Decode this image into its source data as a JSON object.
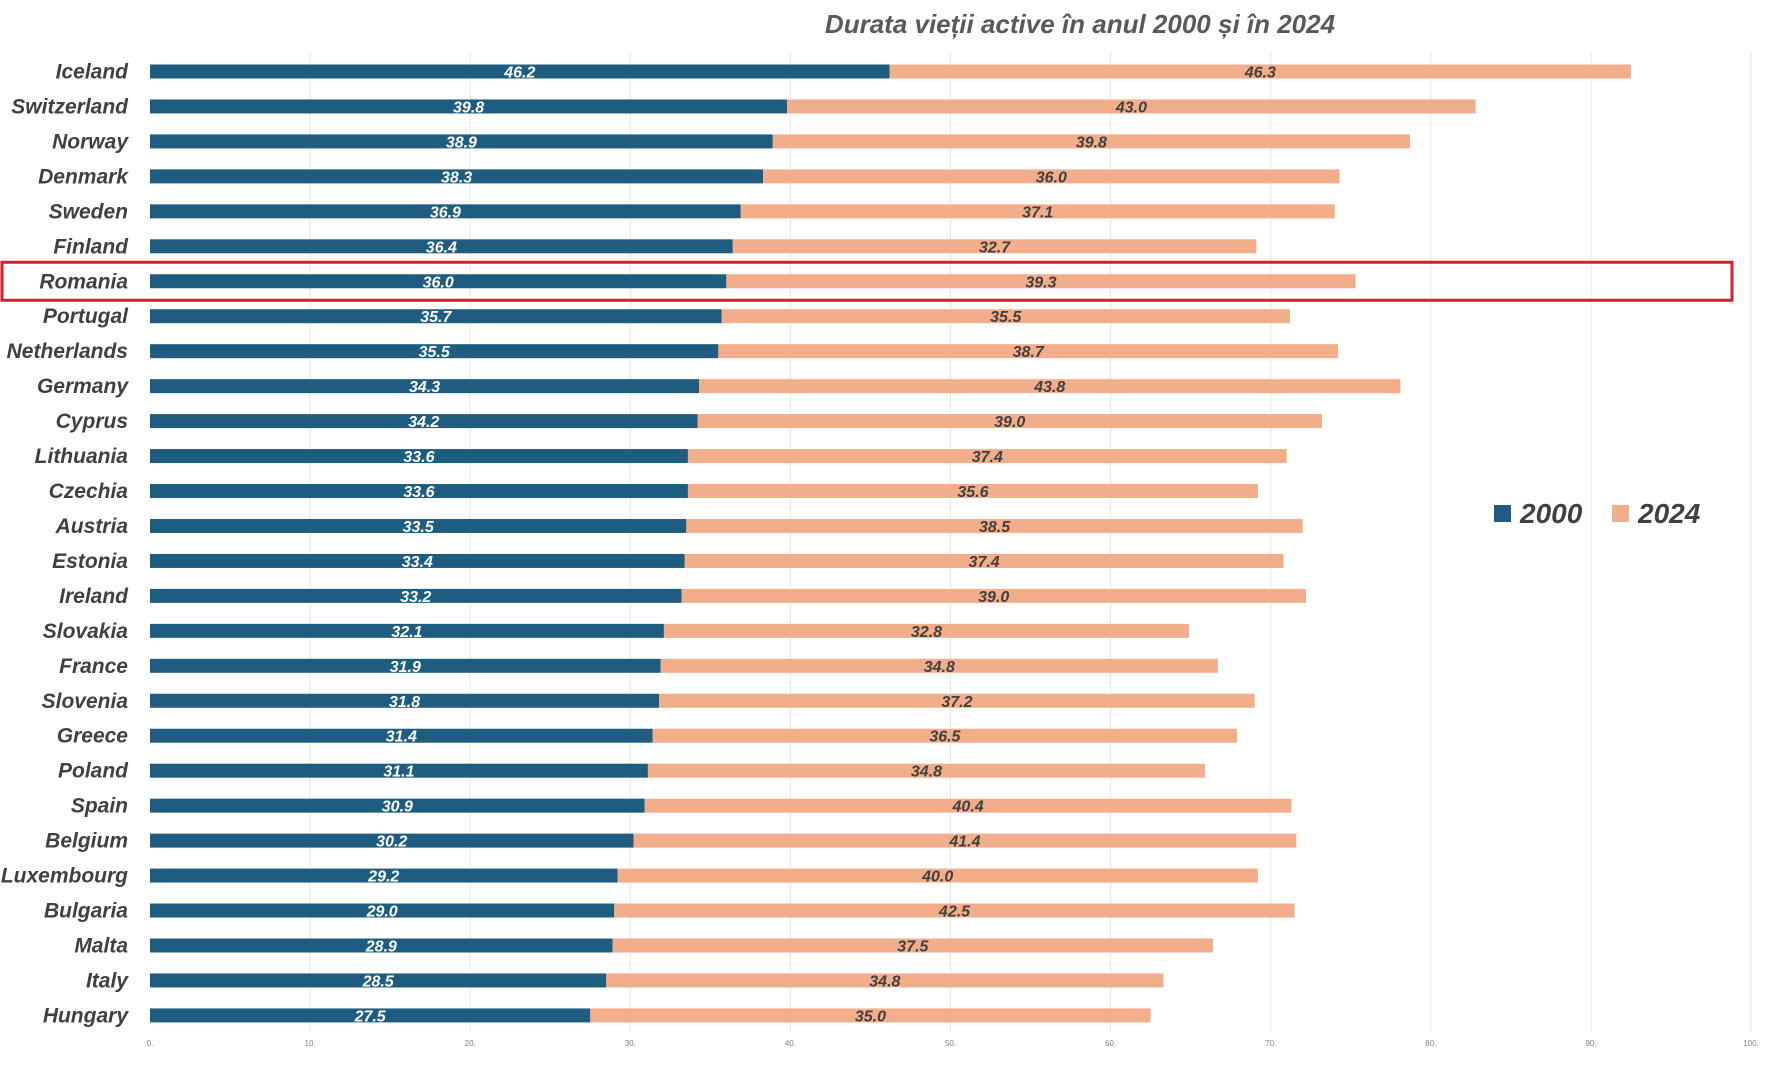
{
  "chart_data": {
    "type": "bar",
    "orientation": "horizontal",
    "stacked": true,
    "title": "Durata vieții active în anul 2000 și în 2024",
    "xlabel": "",
    "ylabel": "",
    "xlim": [
      0,
      100
    ],
    "x_ticks": [
      "0.",
      "10.",
      "20.",
      "30.",
      "40.",
      "50.",
      "60.",
      "70.",
      "80.",
      "90.",
      "100."
    ],
    "grid": "vertical",
    "legend_position": "right",
    "highlight_category": "Romania",
    "highlight_color": "#d0202a",
    "categories": [
      "Iceland",
      "Switzerland",
      "Norway",
      "Denmark",
      "Sweden",
      "Finland",
      "Romania",
      "Portugal",
      "Netherlands",
      "Germany",
      "Cyprus",
      "Lithuania",
      "Czechia",
      "Austria",
      "Estonia",
      "Ireland",
      "Slovakia",
      "France",
      "Slovenia",
      "Greece",
      "Poland",
      "Spain",
      "Belgium",
      "Luxembourg",
      "Bulgaria",
      "Malta",
      "Italy",
      "Hungary"
    ],
    "series": [
      {
        "name": "2000",
        "color": "#1f5d80",
        "values": [
          46.2,
          39.8,
          38.9,
          38.3,
          36.9,
          36.4,
          36.0,
          35.7,
          35.5,
          34.3,
          34.2,
          33.6,
          33.6,
          33.5,
          33.4,
          33.2,
          32.1,
          31.9,
          31.8,
          31.4,
          31.1,
          30.9,
          30.2,
          29.2,
          29.0,
          28.9,
          28.5,
          27.5
        ],
        "labels": [
          "46.2",
          "39.8",
          "38.9",
          "38.3",
          "36.9",
          "36.4",
          "36.0",
          "35.7",
          "35.5",
          "34.3",
          "34.2",
          "33.6",
          "33.6",
          "33.5",
          "33.4",
          "33.2",
          "32.1",
          "31.9",
          "31.8",
          "31.4",
          "31.1",
          "30.9",
          "30.2",
          "29.2",
          "29.0",
          "28.9",
          "28.5",
          "27.5"
        ]
      },
      {
        "name": "2024",
        "color": "#f2ae8a",
        "values": [
          46.3,
          43.0,
          39.8,
          36.0,
          37.1,
          32.7,
          39.3,
          35.5,
          38.7,
          43.8,
          39.0,
          37.4,
          35.6,
          38.5,
          37.4,
          39.0,
          32.8,
          34.8,
          37.2,
          36.5,
          34.8,
          40.4,
          41.4,
          40.0,
          42.5,
          37.5,
          34.8,
          35.0
        ],
        "labels": [
          "46.3",
          "43.0",
          "39.8",
          "36.0",
          "37.1",
          "32.7",
          "39.3",
          "35.5",
          "38.7",
          "43.8",
          "39.0",
          "37.4",
          "35.6",
          "38.5",
          "37.4",
          "39.0",
          "32.8",
          "34.8",
          "37.2",
          "36.5",
          "34.8",
          "40.4",
          "41.4",
          "40.0",
          "42.5",
          "37.5",
          "34.8",
          "35.0"
        ]
      }
    ]
  }
}
